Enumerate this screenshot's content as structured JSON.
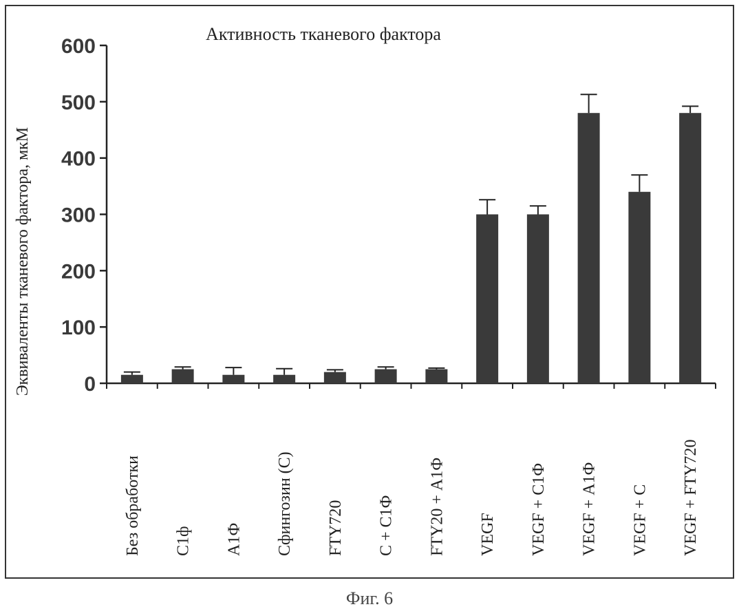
{
  "chart_data": {
    "type": "bar",
    "title": "Активность тканевого фактора",
    "ylabel": "Эквиваленты тканевого фактора, мкМ",
    "xlabel": "",
    "ylim": [
      0,
      600
    ],
    "yticks": [
      "0",
      "100",
      "200",
      "300",
      "400",
      "500",
      "600"
    ],
    "categories": [
      "Без обработки",
      "С1ф",
      "А1Ф",
      "Сфингозин (С)",
      "FTY720",
      "С + С1Ф",
      "FTY20 + А1Ф",
      "VEGF",
      "VEGF + С1Ф",
      "VEGF + А1Ф",
      "VEGF + С",
      "VEGF + FTY720"
    ],
    "values": [
      15,
      25,
      15,
      15,
      20,
      25,
      25,
      300,
      300,
      480,
      340,
      480
    ],
    "error_plus": [
      5,
      4,
      13,
      11,
      4,
      4,
      2,
      26,
      15,
      33,
      30,
      12
    ],
    "bar_color": "#3a3a3a",
    "grid": false,
    "legend": "none"
  },
  "caption": "Фиг. 6"
}
